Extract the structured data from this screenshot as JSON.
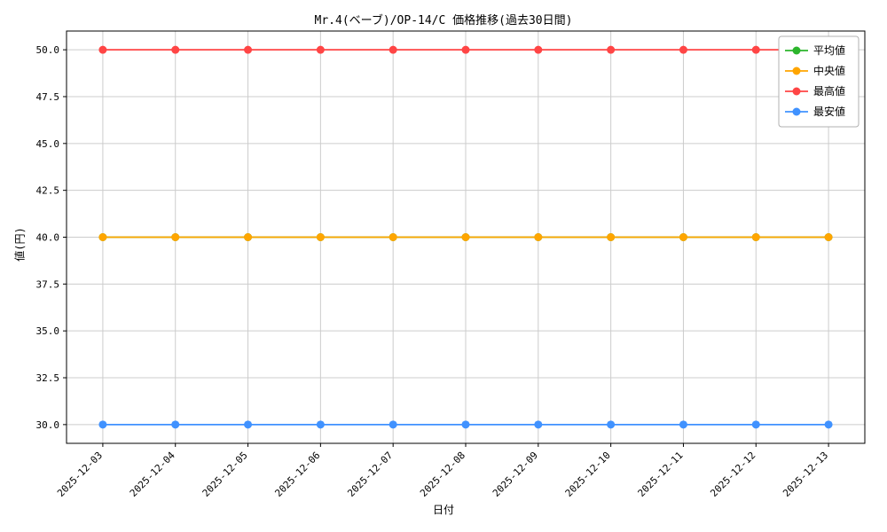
{
  "chart_data": {
    "type": "line",
    "title": "Mr.4(ベーブ)/OP-14/C 価格推移(過去30日間)",
    "xlabel": "日付",
    "ylabel": "値(円)",
    "x": [
      "2025-12-03",
      "2025-12-04",
      "2025-12-05",
      "2025-12-06",
      "2025-12-07",
      "2025-12-08",
      "2025-12-09",
      "2025-12-10",
      "2025-12-11",
      "2025-12-12",
      "2025-12-13"
    ],
    "series": [
      {
        "key": "mean",
        "name": "平均値",
        "color": "#2cb52c",
        "values": [
          40,
          40,
          40,
          40,
          40,
          40,
          40,
          40,
          40,
          40,
          40
        ]
      },
      {
        "key": "median",
        "name": "中央値",
        "color": "#ffa500",
        "values": [
          40,
          40,
          40,
          40,
          40,
          40,
          40,
          40,
          40,
          40,
          40
        ]
      },
      {
        "key": "max",
        "name": "最高値",
        "color": "#ff4545",
        "values": [
          50,
          50,
          50,
          50,
          50,
          50,
          50,
          50,
          50,
          50,
          50
        ]
      },
      {
        "key": "min",
        "name": "最安値",
        "color": "#4092ff",
        "values": [
          30,
          30,
          30,
          30,
          30,
          30,
          30,
          30,
          30,
          30,
          30
        ]
      }
    ],
    "ylim": [
      29,
      51
    ],
    "yticks": [
      30.0,
      32.5,
      35.0,
      37.5,
      40.0,
      42.5,
      45.0,
      47.5,
      50.0
    ],
    "grid": true,
    "grid_color": "#cccccc",
    "frame_color": "#000000",
    "legend_position": "upper right",
    "legend_border_color": "#b0b0b0"
  }
}
